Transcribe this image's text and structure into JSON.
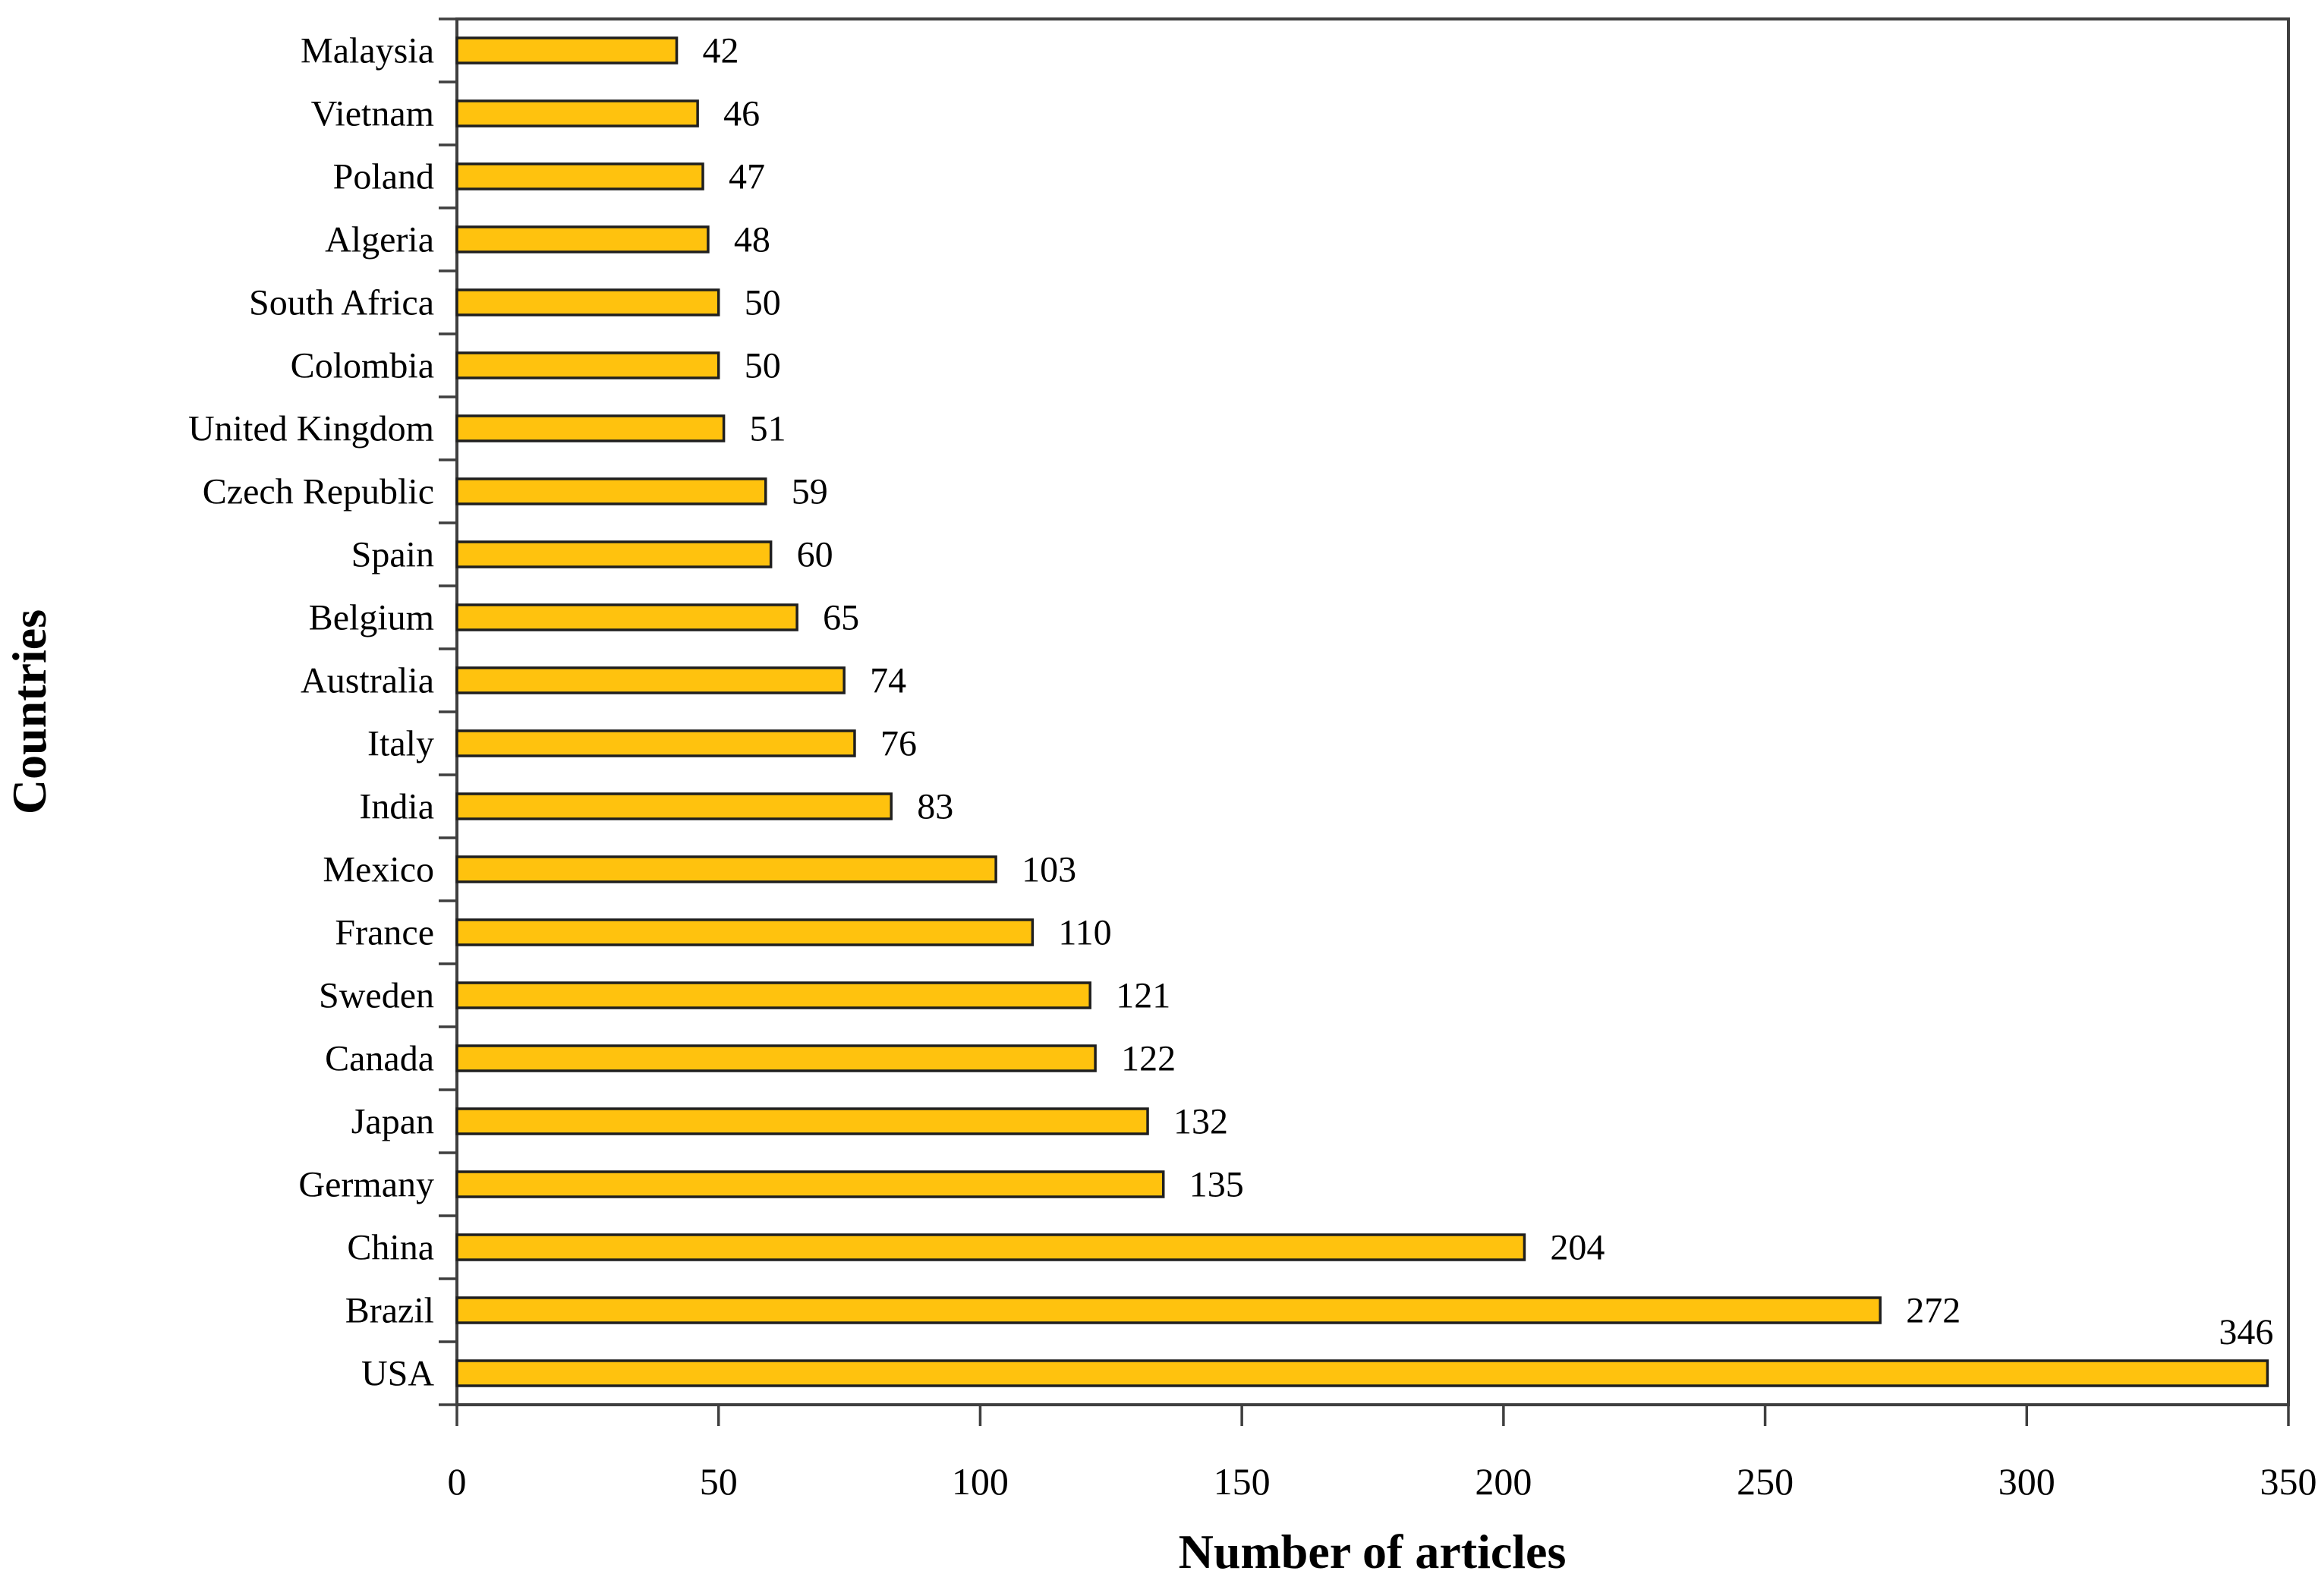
{
  "chart_data": {
    "type": "bar",
    "orientation": "horizontal",
    "title": "",
    "xlabel": "Number of articles",
    "ylabel": "Countries",
    "categories": [
      "Malaysia",
      "Vietnam",
      "Poland",
      "Algeria",
      "South Africa",
      "Colombia",
      "United Kingdom",
      "Czech Republic",
      "Spain",
      "Belgium",
      "Australia",
      "Italy",
      "India",
      "Mexico",
      "France",
      "Sweden",
      "Canada",
      "Japan",
      "Germany",
      "China",
      "Brazil",
      "USA"
    ],
    "values": [
      42,
      46,
      47,
      48,
      50,
      50,
      51,
      59,
      60,
      65,
      74,
      76,
      83,
      103,
      110,
      121,
      122,
      132,
      135,
      204,
      272,
      346
    ],
    "xlim": [
      0,
      350
    ],
    "xticks": [
      0,
      50,
      100,
      150,
      200,
      250,
      300,
      350
    ],
    "grid": false,
    "legend": false,
    "value_labels": true,
    "bar_color": "#FFC20E",
    "bar_border_color": "#1f1f1f",
    "axis_color": "#3f3f3f",
    "text_color": "#000000"
  }
}
